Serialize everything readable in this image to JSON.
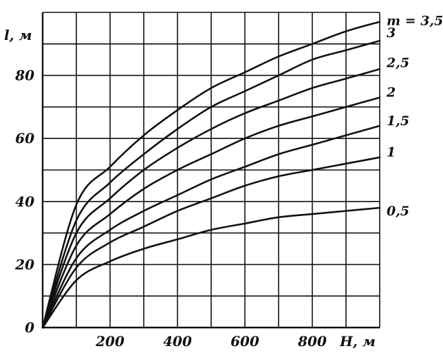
{
  "chart_data": {
    "type": "line",
    "title": "",
    "xlabel": "H, м",
    "ylabel": "l, м",
    "xlim": [
      0,
      1000
    ],
    "ylim": [
      0,
      100
    ],
    "grid": true,
    "x_ticks": [
      {
        "value": 200,
        "label": "200"
      },
      {
        "value": 400,
        "label": "400"
      },
      {
        "value": 600,
        "label": "600"
      },
      {
        "value": 800,
        "label": "800"
      }
    ],
    "y_ticks": [
      {
        "value": 0,
        "label": "0"
      },
      {
        "value": 20,
        "label": "20"
      },
      {
        "value": 40,
        "label": "40"
      },
      {
        "value": 60,
        "label": "60"
      },
      {
        "value": 80,
        "label": "80"
      }
    ],
    "x": [
      0,
      100,
      200,
      300,
      400,
      500,
      600,
      700,
      800,
      900,
      1000
    ],
    "series": [
      {
        "name": "m = 3,5",
        "values": [
          0,
          39,
          51,
          61,
          69,
          76,
          81,
          86,
          90,
          94,
          97
        ]
      },
      {
        "name": "3",
        "values": [
          0,
          34,
          46,
          55,
          63,
          70,
          75,
          80,
          85,
          88,
          91
        ]
      },
      {
        "name": "2,5",
        "values": [
          0,
          30,
          41,
          50,
          57,
          63,
          68,
          72,
          76,
          79,
          82
        ]
      },
      {
        "name": "2",
        "values": [
          0,
          26,
          36,
          44,
          50,
          55,
          60,
          64,
          67,
          70,
          73
        ]
      },
      {
        "name": "1,5",
        "values": [
          0,
          22,
          31,
          37,
          42,
          47,
          51,
          55,
          58,
          61,
          64
        ]
      },
      {
        "name": "1",
        "values": [
          0,
          19,
          27,
          32,
          37,
          41,
          45,
          48,
          50,
          52,
          54
        ]
      },
      {
        "name": "0,5",
        "values": [
          0,
          15,
          21,
          25,
          28,
          31,
          33,
          35,
          36,
          37,
          38
        ]
      }
    ]
  }
}
